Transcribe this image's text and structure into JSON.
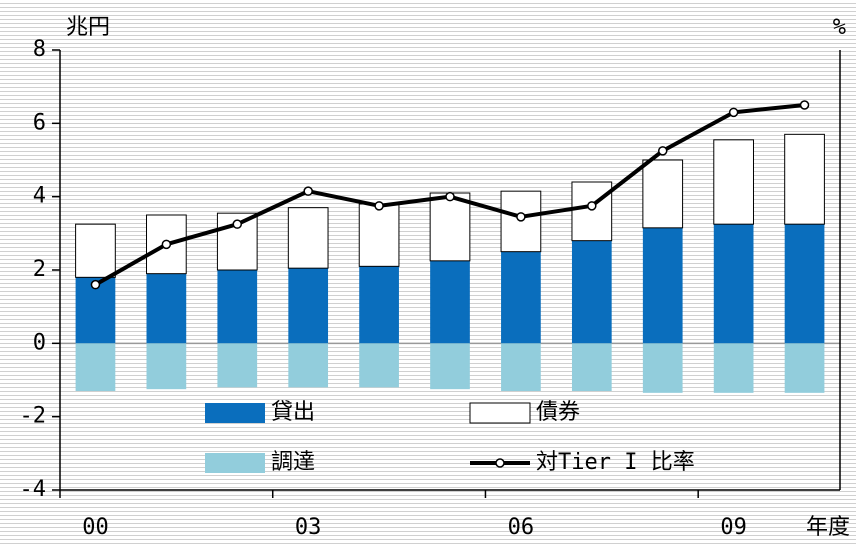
{
  "chart_data": {
    "type": "bar",
    "ylabel": "兆円",
    "y2label": "%",
    "xlabel": "年度",
    "categories": [
      "00",
      null,
      null,
      "03",
      null,
      null,
      "06",
      null,
      null,
      "09",
      null
    ],
    "series": [
      {
        "name": "貸出",
        "color": "#0a6ebd",
        "values": [
          1.8,
          1.9,
          2.0,
          2.05,
          2.1,
          2.25,
          2.5,
          2.8,
          3.15,
          3.25,
          3.25
        ]
      },
      {
        "name": "債券",
        "color": "#ffffff",
        "values": [
          1.45,
          1.6,
          1.55,
          1.65,
          1.7,
          1.85,
          1.65,
          1.6,
          1.85,
          2.3,
          2.45
        ]
      },
      {
        "name": "調達",
        "color": "#92cddc",
        "values": [
          -1.3,
          -1.25,
          -1.2,
          -1.2,
          -1.2,
          -1.25,
          -1.3,
          -1.3,
          -1.35,
          -1.35,
          -1.35
        ]
      },
      {
        "name": "対Tier I 比率",
        "color": "#000000",
        "type": "line",
        "axis": "y2",
        "values": [
          1.6,
          2.7,
          3.25,
          4.15,
          3.75,
          4.0,
          3.45,
          3.75,
          5.25,
          6.3,
          6.5
        ]
      }
    ],
    "ylim": [
      -4,
      8
    ],
    "yticks": [
      -4,
      -2,
      0,
      2,
      4,
      6,
      8
    ],
    "y2lim": [
      -4,
      8
    ]
  }
}
